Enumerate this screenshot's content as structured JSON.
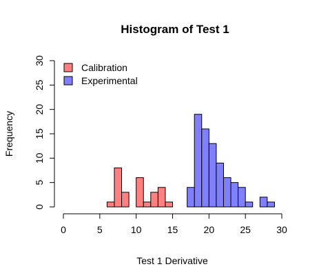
{
  "chart_data": {
    "type": "bar",
    "title": "Histogram of Test 1",
    "xlabel": "Test 1 Derivative",
    "ylabel": "Frequency",
    "xlim": [
      0,
      30
    ],
    "ylim": [
      0,
      30
    ],
    "xticks": [
      0,
      5,
      10,
      15,
      20,
      25,
      30
    ],
    "yticks": [
      0,
      5,
      10,
      15,
      20,
      25,
      30
    ],
    "bin_width": 1,
    "grid": false,
    "legend_position": "top-left",
    "series": [
      {
        "name": "Calibration",
        "color": "#ff8080",
        "bins": [
          {
            "x0": 6,
            "x1": 7,
            "count": 1
          },
          {
            "x0": 7,
            "x1": 8,
            "count": 8
          },
          {
            "x0": 8,
            "x1": 9,
            "count": 3
          },
          {
            "x0": 10,
            "x1": 11,
            "count": 6
          },
          {
            "x0": 11,
            "x1": 12,
            "count": 1
          },
          {
            "x0": 12,
            "x1": 13,
            "count": 3
          },
          {
            "x0": 13,
            "x1": 14,
            "count": 4
          },
          {
            "x0": 14,
            "x1": 15,
            "count": 1
          }
        ]
      },
      {
        "name": "Experimental",
        "color": "#8080ff",
        "bins": [
          {
            "x0": 17,
            "x1": 18,
            "count": 4
          },
          {
            "x0": 18,
            "x1": 19,
            "count": 19
          },
          {
            "x0": 19,
            "x1": 20,
            "count": 16
          },
          {
            "x0": 20,
            "x1": 21,
            "count": 13
          },
          {
            "x0": 21,
            "x1": 22,
            "count": 9
          },
          {
            "x0": 22,
            "x1": 23,
            "count": 6
          },
          {
            "x0": 23,
            "x1": 24,
            "count": 5
          },
          {
            "x0": 24,
            "x1": 25,
            "count": 4
          },
          {
            "x0": 25,
            "x1": 26,
            "count": 1
          },
          {
            "x0": 27,
            "x1": 28,
            "count": 2
          },
          {
            "x0": 28,
            "x1": 29,
            "count": 1
          }
        ]
      }
    ]
  }
}
